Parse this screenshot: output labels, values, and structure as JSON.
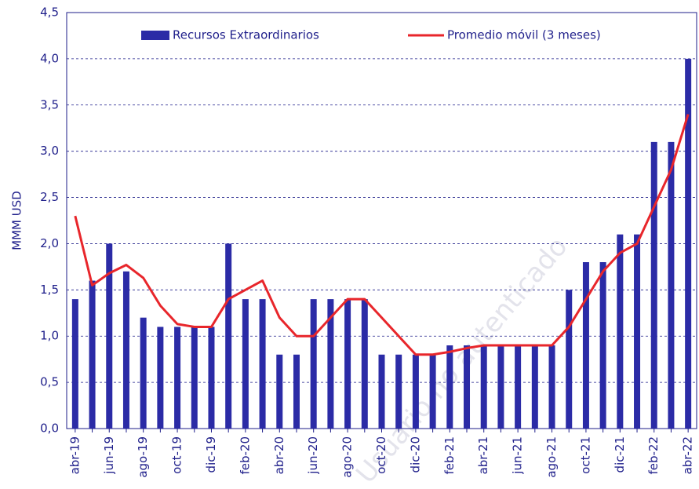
{
  "chart_data": {
    "type": "bar",
    "y_label": "MMM USD",
    "watermark": "Usuario no autenticado",
    "categories": [
      "abr-19",
      null,
      "jun-19",
      null,
      "ago-19",
      null,
      "oct-19",
      null,
      "dic-19",
      null,
      "feb-20",
      null,
      "abr-20",
      null,
      "jun-20",
      null,
      "ago-20",
      null,
      "oct-20",
      null,
      "dic-20",
      null,
      "feb-21",
      null,
      "abr-21",
      null,
      "jun-21",
      null,
      "ago-21",
      null,
      "oct-21",
      null,
      "dic-21",
      null,
      "feb-22",
      null,
      "abr-22"
    ],
    "series": [
      {
        "name": "Recursos Extraordinarios",
        "type": "bar",
        "color": "#2b2ba6",
        "values": [
          1.4,
          1.6,
          2.0,
          1.7,
          1.2,
          1.1,
          1.1,
          1.1,
          1.1,
          2.0,
          1.4,
          1.4,
          0.8,
          0.8,
          1.4,
          1.4,
          1.4,
          1.4,
          0.8,
          0.8,
          0.8,
          0.8,
          0.9,
          0.9,
          0.9,
          0.9,
          0.9,
          0.9,
          0.9,
          1.5,
          1.8,
          1.8,
          2.1,
          2.1,
          3.1,
          3.1,
          4.0
        ]
      },
      {
        "name": "Promedio móvil (3 meses)",
        "type": "line",
        "color": "#e8262b",
        "values": [
          2.3,
          1.55,
          1.68,
          1.77,
          1.63,
          1.33,
          1.13,
          1.1,
          1.1,
          1.4,
          1.5,
          1.6,
          1.2,
          1.0,
          1.0,
          1.2,
          1.4,
          1.4,
          1.2,
          1.0,
          0.8,
          0.8,
          0.83,
          0.87,
          0.9,
          0.9,
          0.9,
          0.9,
          0.9,
          1.1,
          1.4,
          1.7,
          1.9,
          2.0,
          2.4,
          2.8,
          3.4
        ]
      }
    ],
    "ylim": [
      0,
      4.5
    ],
    "yticks": [
      {
        "value": 0,
        "label": "0,0"
      },
      {
        "value": 0.5,
        "label": "0,5"
      },
      {
        "value": 1,
        "label": "1,0"
      },
      {
        "value": 1.5,
        "label": "1,5"
      },
      {
        "value": 2,
        "label": "2,0"
      },
      {
        "value": 2.5,
        "label": "2,5"
      },
      {
        "value": 3,
        "label": "3,0"
      },
      {
        "value": 3.5,
        "label": "3,5"
      },
      {
        "value": 4,
        "label": "4,0"
      },
      {
        "value": 4.5,
        "label": "4,5"
      }
    ],
    "grid": true,
    "legend": "top"
  }
}
